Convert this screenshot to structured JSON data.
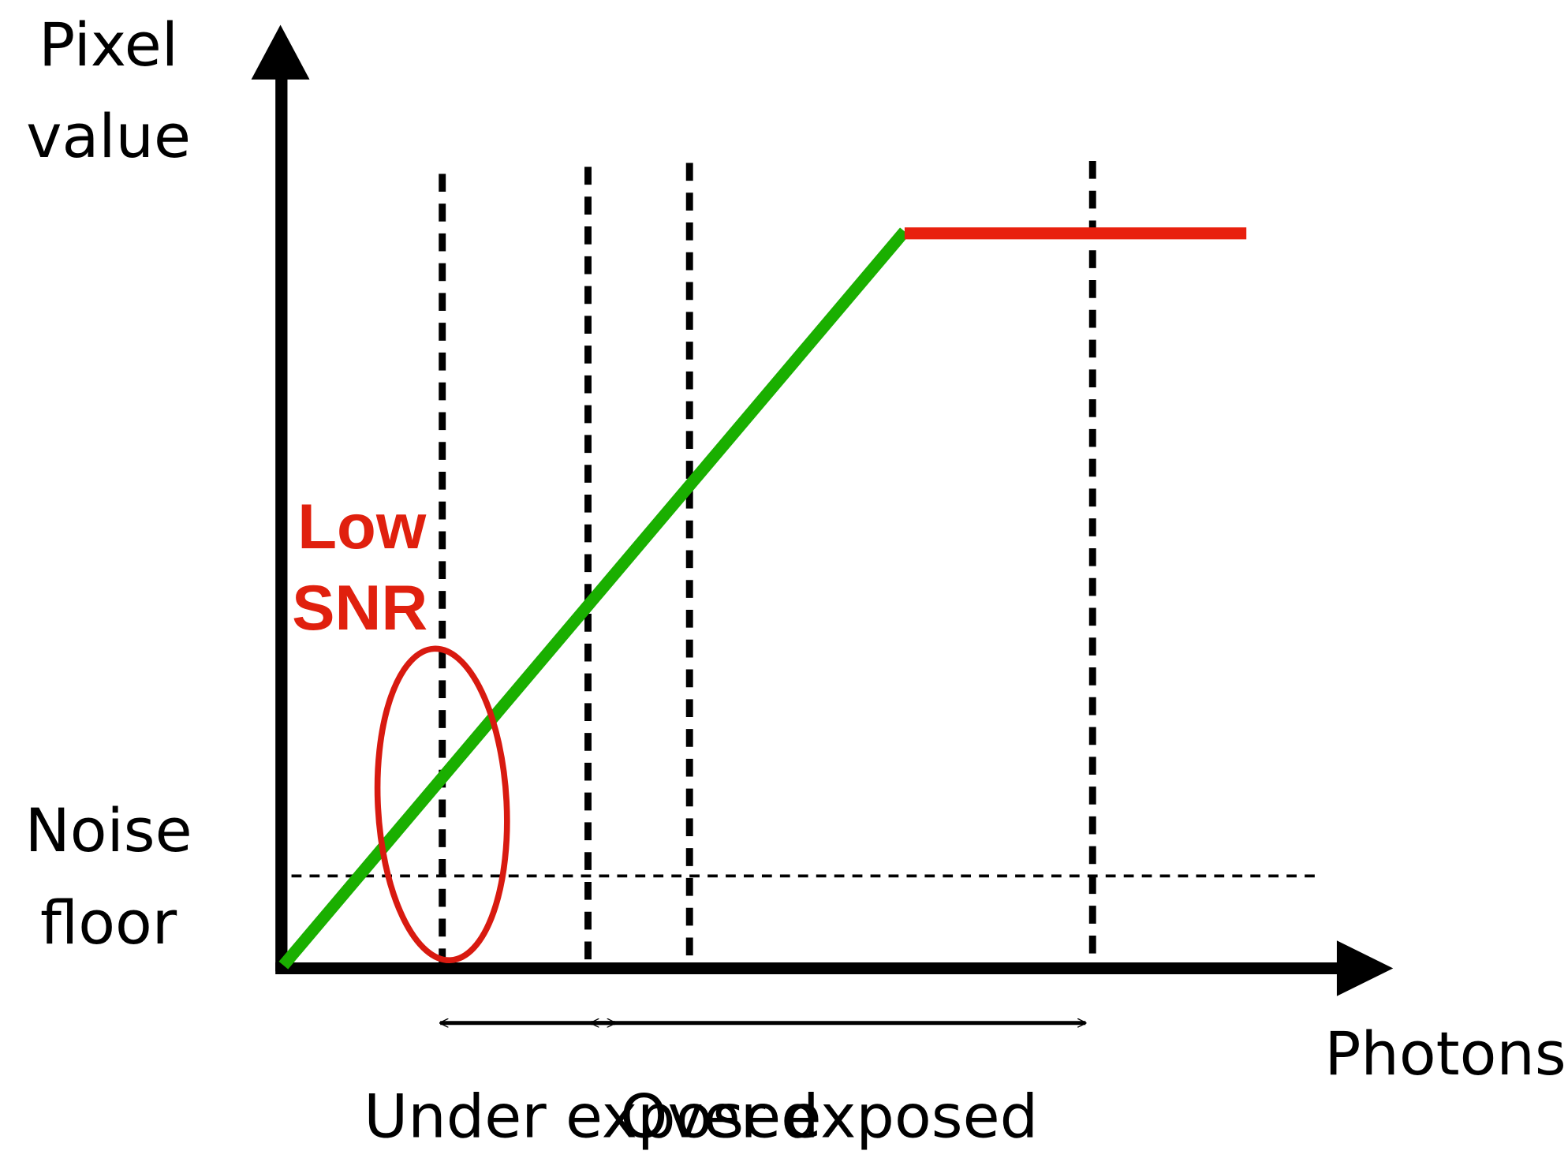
{
  "axes": {
    "y_label_lines": [
      "Pixel",
      "value"
    ],
    "x_label": "Photons"
  },
  "annotations": {
    "noise_floor_lines": [
      "Noise",
      "floor"
    ],
    "low_snr_lines": [
      "Low",
      "SNR"
    ]
  },
  "ranges": [
    {
      "label": "Under exposed"
    },
    {
      "label": "Over exposed"
    }
  ]
}
